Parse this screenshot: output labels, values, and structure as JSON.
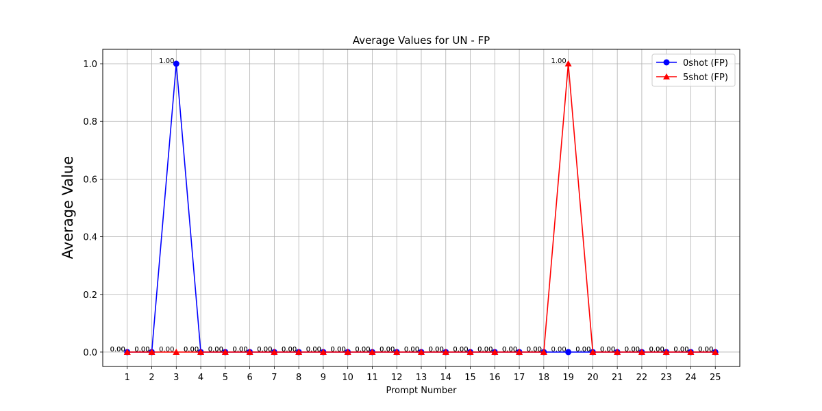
{
  "chart_data": {
    "type": "line",
    "title": "Average Values for UN - FP",
    "xlabel": "Prompt Number",
    "ylabel": "Average Value",
    "categories": [
      1,
      2,
      3,
      4,
      5,
      6,
      7,
      8,
      9,
      10,
      11,
      12,
      13,
      14,
      15,
      16,
      17,
      18,
      19,
      20,
      21,
      22,
      23,
      24,
      25
    ],
    "y_ticks": [
      "0.0",
      "0.2",
      "0.4",
      "0.6",
      "0.8",
      "1.0"
    ],
    "ylim": [
      -0.05,
      1.05
    ],
    "xlim": [
      0,
      26
    ],
    "grid": true,
    "legend_position": "top-right",
    "series": [
      {
        "name": "0shot (FP)",
        "color": "#0000ff",
        "marker": "circle",
        "values": [
          0,
          0,
          1,
          0,
          0,
          0,
          0,
          0,
          0,
          0,
          0,
          0,
          0,
          0,
          0,
          0,
          0,
          0,
          0,
          0,
          0,
          0,
          0,
          0,
          0
        ],
        "labels": [
          "0.00",
          "0.00",
          "1.00",
          "0.00",
          "0.00",
          "0.00",
          "0.00",
          "0.00",
          "0.00",
          "0.00",
          "0.00",
          "0.00",
          "0.00",
          "0.00",
          "0.00",
          "0.00",
          "0.00",
          "0.00",
          "0.00",
          "0.00",
          "0.00",
          "0.00",
          "0.00",
          "0.00",
          "0.00"
        ]
      },
      {
        "name": "5shot (FP)",
        "color": "#ff0000",
        "marker": "triangle",
        "values": [
          0,
          0,
          0,
          0,
          0,
          0,
          0,
          0,
          0,
          0,
          0,
          0,
          0,
          0,
          0,
          0,
          0,
          0,
          1,
          0,
          0,
          0,
          0,
          0,
          0
        ],
        "labels": [
          "0.00",
          "0.00",
          "0.00",
          "0.00",
          "0.00",
          "0.00",
          "0.00",
          "0.00",
          "0.00",
          "0.00",
          "0.00",
          "0.00",
          "0.00",
          "0.00",
          "0.00",
          "0.00",
          "0.00",
          "0.00",
          "1.00",
          "0.00",
          "0.00",
          "0.00",
          "0.00",
          "0.00",
          "0.00"
        ]
      }
    ]
  }
}
